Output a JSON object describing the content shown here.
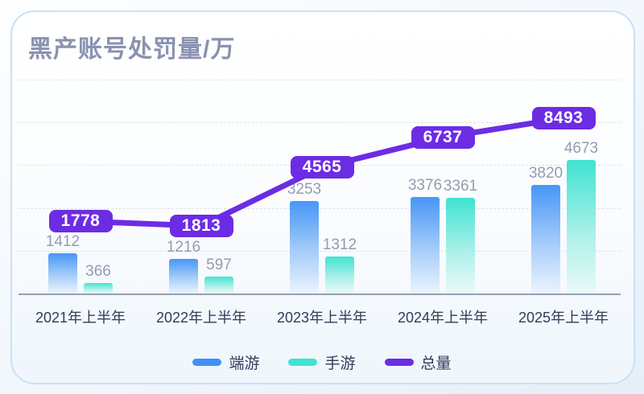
{
  "title": "黑产账号处罚量/万",
  "legend": {
    "items": [
      {
        "label": "端游",
        "color": "#4090F7"
      },
      {
        "label": "手游",
        "color": "#41E3D2"
      },
      {
        "label": "总量",
        "color": "#6C2CE4"
      }
    ]
  },
  "chart_data": {
    "type": "bar",
    "subtype": "grouped-bars-with-total-line",
    "title": "黑产账号处罚量/万",
    "categories": [
      "2021年上半年",
      "2022年上半年",
      "2023年上半年",
      "2024年上半年",
      "2025年上半年"
    ],
    "series": [
      {
        "name": "端游",
        "type": "bar",
        "color": "#4090F7",
        "values": [
          1412,
          1216,
          3253,
          3376,
          3820
        ]
      },
      {
        "name": "手游",
        "type": "bar",
        "color": "#41E3D2",
        "values": [
          366,
          597,
          1312,
          3361,
          4673
        ]
      },
      {
        "name": "总量",
        "type": "line",
        "color": "#6C2CE4",
        "values": [
          1778,
          1813,
          4565,
          6737,
          8493
        ]
      }
    ],
    "ylim": [
      0,
      7500
    ],
    "y_axis_labels_visible": false,
    "grid": "horizontal-dashed",
    "legend_position": "bottom",
    "value_label_style": "bar values in gray above bars; line values in purple rounded badges on the line"
  }
}
